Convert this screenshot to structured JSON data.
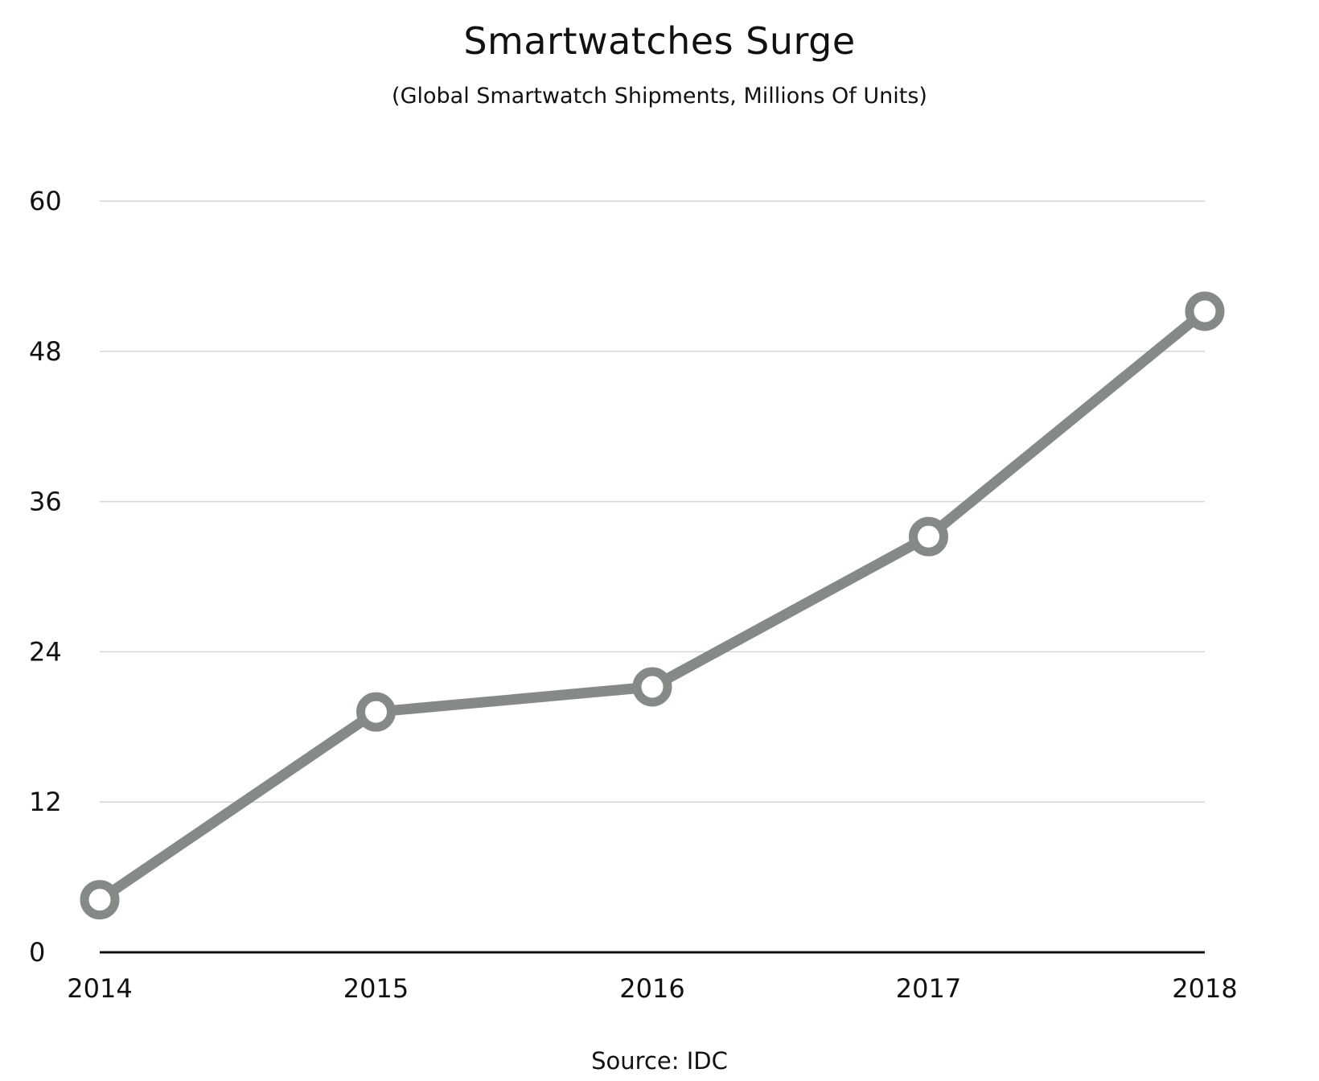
{
  "chart_data": {
    "type": "line",
    "title": "Smartwatches Surge",
    "subtitle": "(Global Smartwatch Shipments, Millions Of Units)",
    "source": "Source: IDC",
    "categories": [
      "2014",
      "2015",
      "2016",
      "2017",
      "2018"
    ],
    "series": [
      {
        "values": [
          4.2,
          19.2,
          21.2,
          33.2,
          51.2
        ]
      }
    ],
    "ylim": [
      0,
      60
    ],
    "yticks": [
      0,
      12,
      24,
      36,
      48,
      60
    ],
    "ytick_labels": [
      "0",
      "12",
      "24",
      "36",
      "48",
      "60"
    ],
    "grid": true,
    "legend": "none",
    "colors": {
      "line": "#858a86",
      "marker_fill": "#ffffff",
      "grid": "#d6d6d6",
      "axis": "#111111",
      "text": "#111111"
    }
  }
}
